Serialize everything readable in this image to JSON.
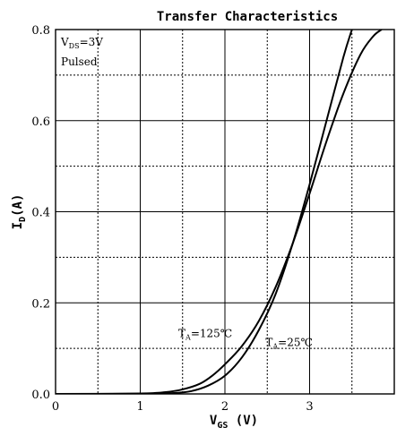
{
  "chart_data": {
    "type": "line",
    "title": "Transfer Characteristics",
    "xlabel": {
      "main": "V",
      "sub": "GS",
      "unit": " (V)"
    },
    "ylabel": {
      "main": "I",
      "sub": "D",
      "unit": "(A)"
    },
    "xlim": [
      0,
      4
    ],
    "ylim": [
      0,
      0.8
    ],
    "x_ticks": [
      "0",
      "1",
      "2",
      "3"
    ],
    "x_tick_values": [
      0,
      1,
      2,
      3
    ],
    "y_ticks": [
      "0.0",
      "0.2",
      "0.4",
      "0.6",
      "0.8"
    ],
    "y_tick_values": [
      0,
      0.2,
      0.4,
      0.6,
      0.8
    ],
    "grid": true,
    "conditions": {
      "line1": {
        "main": "V",
        "sub": "DS",
        "rest": "=3V"
      },
      "line2": "Pulsed"
    },
    "series": [
      {
        "name": {
          "main": "T",
          "sub": "A",
          "rest": "=125℃"
        },
        "x": [
          0,
          1.0,
          1.3,
          1.5,
          1.7,
          1.85,
          2.0,
          2.2,
          2.4,
          2.6,
          2.8,
          3.0,
          3.2,
          3.4,
          3.6,
          3.75,
          3.85
        ],
        "values": [
          0,
          0.001,
          0.004,
          0.01,
          0.022,
          0.04,
          0.065,
          0.105,
          0.16,
          0.235,
          0.33,
          0.44,
          0.555,
          0.66,
          0.745,
          0.785,
          0.8
        ]
      },
      {
        "name": {
          "main": "T",
          "sub": "A",
          "rest": "=25℃"
        },
        "x": [
          0,
          1.0,
          1.4,
          1.6,
          1.8,
          2.0,
          2.2,
          2.4,
          2.6,
          2.8,
          3.0,
          3.2,
          3.4,
          3.5
        ],
        "values": [
          0,
          0.0,
          0.002,
          0.006,
          0.018,
          0.04,
          0.08,
          0.14,
          0.22,
          0.33,
          0.46,
          0.6,
          0.74,
          0.8
        ]
      }
    ],
    "annotations": [
      {
        "series": 0,
        "x": 1.45,
        "y": 0.125
      },
      {
        "series": 1,
        "x": 2.48,
        "y": 0.105
      }
    ]
  }
}
